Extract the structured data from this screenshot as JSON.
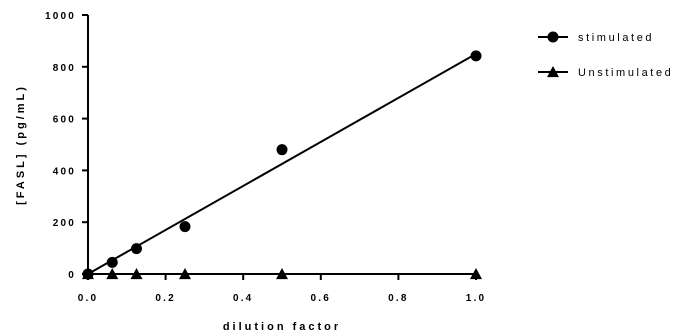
{
  "chart_data": {
    "type": "scatter",
    "xlabel": "dilution factor",
    "ylabel": "[FASL] (pg/mL)",
    "xlim": [
      0,
      1.0
    ],
    "ylim": [
      0,
      1000
    ],
    "x_ticks": [
      "0.0",
      "0.2",
      "0.4",
      "0.6",
      "0.8",
      "1.0"
    ],
    "y_ticks": [
      "0",
      "200",
      "400",
      "600",
      "800",
      "1000"
    ],
    "grid": false,
    "legend_position": "top-right",
    "series": [
      {
        "name": "stimulated",
        "marker": "circle",
        "color": "#000000",
        "x": [
          0,
          0.0625,
          0.125,
          0.25,
          0.5,
          1.0
        ],
        "y": [
          0,
          45,
          98,
          183,
          480,
          842
        ],
        "fit_line": {
          "x": [
            0,
            1.0
          ],
          "y": [
            0,
            850
          ]
        }
      },
      {
        "name": "Unstimulated",
        "marker": "triangle",
        "color": "#000000",
        "x": [
          0,
          0.0625,
          0.125,
          0.25,
          0.5,
          1.0
        ],
        "y": [
          0,
          0,
          0,
          0,
          0,
          0
        ],
        "fit_line": {
          "x": [
            0,
            1.0
          ],
          "y": [
            0,
            0
          ]
        }
      }
    ]
  }
}
